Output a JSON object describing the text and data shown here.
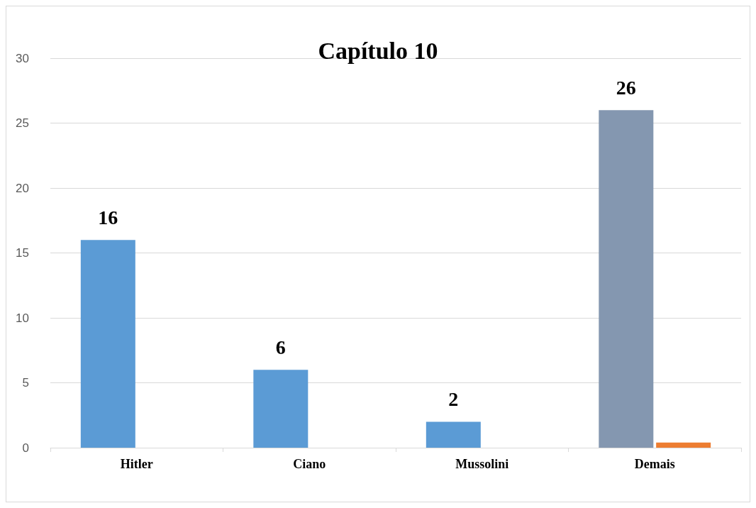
{
  "chart_data": {
    "type": "bar",
    "title": "Capítulo 10",
    "categories": [
      "Hitler",
      "Ciano",
      "Mussolini",
      "Demais"
    ],
    "series": [
      {
        "colors": [
          "#5b9bd5",
          "#5b9bd5",
          "#5b9bd5",
          "#8497b0"
        ],
        "values": [
          16,
          6,
          2,
          26
        ],
        "value_labels": [
          "16",
          "6",
          "2",
          "26"
        ]
      },
      {
        "color": "#ed7d31",
        "values": [
          null,
          null,
          null,
          0.4
        ]
      }
    ],
    "ylim": [
      0,
      30
    ],
    "yticks": [
      0,
      5,
      10,
      15,
      20,
      25,
      30
    ],
    "grid": "y"
  }
}
